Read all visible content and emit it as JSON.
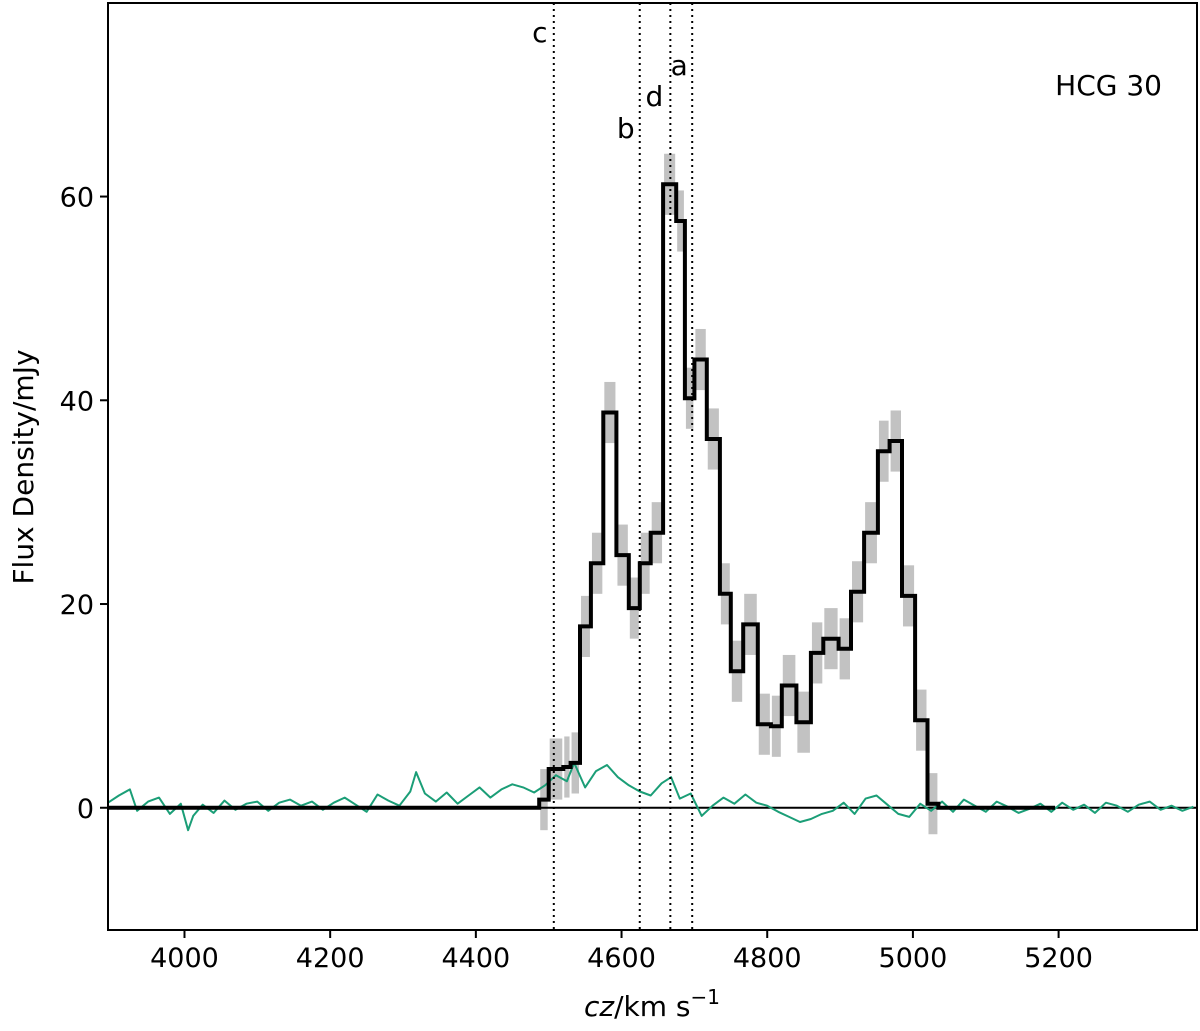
{
  "chart_data": {
    "type": "line",
    "title": "",
    "xlabel": "cz/km s⁻¹",
    "ylabel": "Flux Density/mJy",
    "xlim": [
      3895,
      5390
    ],
    "ylim": [
      -12,
      79
    ],
    "grid": false,
    "legend": "none",
    "x_ticks": [
      4000,
      4200,
      4400,
      4600,
      4800,
      5000,
      5200
    ],
    "y_ticks": [
      0,
      20,
      40,
      60
    ],
    "x_tick_labels": [
      "4000",
      "4200",
      "4400",
      "4600",
      "4800",
      "5000",
      "5200"
    ],
    "y_tick_labels": [
      "0",
      "20",
      "40",
      "60"
    ],
    "annotation": "HCG 30",
    "zero_line": 0,
    "vertical_markers": [
      {
        "label": "c",
        "x": 4507
      },
      {
        "label": "b",
        "x": 4625
      },
      {
        "label": "d",
        "x": 4667
      },
      {
        "label": "a",
        "x": 4697
      }
    ],
    "series": [
      {
        "kind": "step",
        "color": "#000000",
        "bin_edges": [
          3895,
          3915,
          3935,
          3955,
          3975,
          3995,
          4015,
          4035,
          4055,
          4075,
          4095,
          4115,
          4135,
          4155,
          4175,
          4195,
          4215,
          4235,
          4255,
          4275,
          4295,
          4315,
          4335,
          4355,
          4375,
          4395,
          4415,
          4435,
          4455,
          4475,
          4487,
          4500,
          4520,
          4530,
          4543,
          4558,
          4575,
          4593,
          4610,
          4625,
          4640,
          4657,
          4675,
          4687,
          4700,
          4717,
          4735,
          4750,
          4767,
          4787,
          4805,
          4820,
          4840,
          4860,
          4877,
          4898,
          4915,
          4933,
          4952,
          4968,
          4985,
          5003,
          5020,
          5035,
          5052,
          5070,
          5087,
          5102,
          5120,
          5140,
          5157,
          5175,
          5195
        ],
        "values": [
          0,
          0,
          0,
          0,
          0,
          0,
          0,
          0,
          0,
          0,
          0,
          0,
          0,
          0,
          0,
          0,
          0,
          0,
          0,
          0,
          0,
          0,
          0,
          0,
          0,
          0,
          0,
          0,
          0,
          0,
          0.8,
          3.8,
          4.0,
          4.4,
          17.8,
          24.0,
          38.8,
          24.8,
          19.6,
          24.0,
          27.0,
          61.2,
          57.6,
          40.2,
          44.0,
          36.2,
          21.0,
          13.4,
          18.0,
          8.2,
          8.0,
          12.0,
          8.4,
          15.2,
          16.6,
          15.6,
          21.2,
          27.0,
          35.0,
          36.0,
          20.8,
          8.6,
          0.4,
          0,
          0,
          0,
          0,
          0,
          0,
          0,
          0,
          0
        ],
        "uncertainty": 3.0
      },
      {
        "kind": "line",
        "color": "#1b9e77",
        "x": [
          3895,
          3910,
          3925,
          3935,
          3950,
          3965,
          3980,
          3995,
          4005,
          4012,
          4025,
          4040,
          4055,
          4070,
          4085,
          4100,
          4115,
          4130,
          4145,
          4160,
          4175,
          4190,
          4205,
          4220,
          4235,
          4250,
          4265,
          4280,
          4295,
          4310,
          4318,
          4330,
          4345,
          4360,
          4375,
          4390,
          4405,
          4420,
          4435,
          4450,
          4465,
          4480,
          4495,
          4510,
          4525,
          4535,
          4550,
          4565,
          4580,
          4595,
          4610,
          4625,
          4640,
          4655,
          4668,
          4680,
          4695,
          4710,
          4725,
          4740,
          4755,
          4770,
          4785,
          4800,
          4815,
          4830,
          4845,
          4860,
          4875,
          4890,
          4905,
          4920,
          4935,
          4950,
          4965,
          4980,
          4995,
          5010,
          5025,
          5040,
          5055,
          5070,
          5085,
          5100,
          5115,
          5130,
          5145,
          5160,
          5175,
          5190,
          5205,
          5220,
          5235,
          5250,
          5265,
          5280,
          5295,
          5310,
          5325,
          5340,
          5355,
          5370,
          5385
        ],
        "y": [
          0.5,
          1.2,
          1.8,
          -0.3,
          0.6,
          1.0,
          -0.6,
          0.4,
          -2.2,
          -0.8,
          0.3,
          -0.5,
          0.7,
          -0.2,
          0.4,
          0.6,
          -0.3,
          0.5,
          0.8,
          0.2,
          0.6,
          -0.2,
          0.5,
          1.0,
          0.3,
          -0.4,
          1.3,
          0.7,
          0.2,
          1.6,
          3.5,
          1.4,
          0.6,
          1.5,
          0.4,
          1.2,
          2.0,
          1.0,
          1.8,
          2.3,
          2.0,
          1.5,
          2.2,
          3.2,
          2.6,
          4.4,
          2.0,
          3.6,
          4.2,
          3.0,
          2.2,
          1.6,
          1.2,
          2.4,
          3.0,
          0.9,
          1.4,
          -0.8,
          0.2,
          1.0,
          0.4,
          1.3,
          0.5,
          0.2,
          -0.4,
          -0.9,
          -1.4,
          -1.1,
          -0.6,
          -0.3,
          0.5,
          -0.6,
          0.9,
          1.2,
          0.3,
          -0.6,
          -0.9,
          0.4,
          -0.3,
          0.6,
          -0.4,
          0.8,
          0.2,
          -0.4,
          0.6,
          0.1,
          -0.5,
          -0.1,
          0.4,
          -0.4,
          0.5,
          -0.2,
          0.3,
          -0.5,
          0.5,
          0.2,
          -0.4,
          0.3,
          0.6,
          -0.2,
          0.2,
          -0.3,
          0.1
        ]
      }
    ]
  }
}
